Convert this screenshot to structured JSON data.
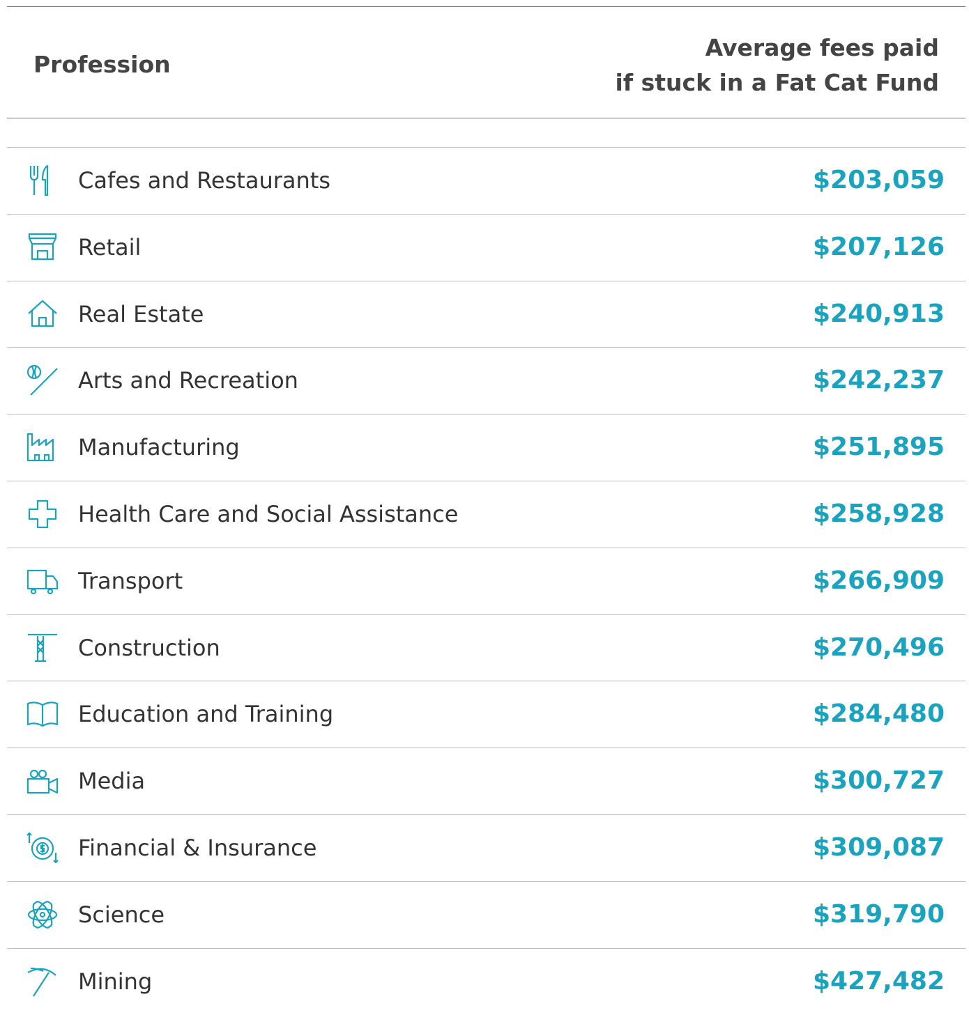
{
  "header": {
    "profession": "Profession",
    "fees": [
      "Average fees paid",
      "if stuck in a Fat Cat Fund"
    ]
  },
  "table": {
    "rows": [
      [
        "Cafes and Restaurants",
        "$203,059"
      ],
      [
        "Retail",
        "$207,126"
      ],
      [
        "Real Estate",
        "$240,913"
      ],
      [
        "Arts and Recreation",
        "$242,237"
      ],
      [
        "Manufacturing",
        "$251,895"
      ],
      [
        "Health Care and Social Assistance",
        "$258,928"
      ],
      [
        "Transport",
        "$266,909"
      ],
      [
        "Construction",
        "$270,496"
      ],
      [
        "Education and Training",
        "$284,480"
      ],
      [
        "Media",
        "$300,727"
      ],
      [
        "Financial & Insurance",
        "$309,087"
      ],
      [
        "Science",
        "$319,790"
      ],
      [
        "Mining",
        "$427,482"
      ]
    ]
  }
}
